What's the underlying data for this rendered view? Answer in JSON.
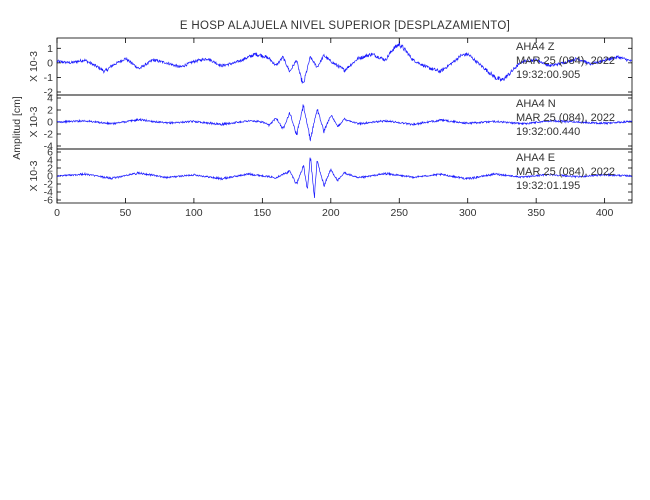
{
  "chart_data": {
    "type": "line",
    "title": "E HOSP ALAJUELA NIVEL SUPERIOR [DESPLAZAMIENTO]",
    "ylabel": "Amplitud [cm]",
    "x_ticks": [
      "0",
      "50",
      "100",
      "150",
      "200",
      "250",
      "300",
      "350",
      "400"
    ],
    "xlim": [
      0,
      420
    ],
    "line_color": "#1a1aff",
    "panels": [
      {
        "name": "Z",
        "scale_label": "X 10-3",
        "ylim": [
          -2,
          1.5
        ],
        "y_ticks": [
          "1",
          "0",
          "-1",
          "-2"
        ],
        "annotation": [
          "AHA4 Z",
          "MAR 25 (084), 2022",
          "19:32:00.905"
        ],
        "noise_amp": 0.22,
        "series": {
          "x": [
            0,
            10,
            20,
            30,
            35,
            40,
            50,
            60,
            70,
            80,
            90,
            100,
            110,
            120,
            130,
            140,
            145,
            150,
            155,
            160,
            165,
            170,
            175,
            178,
            180,
            182,
            185,
            190,
            195,
            200,
            210,
            220,
            230,
            240,
            245,
            250,
            255,
            260,
            270,
            280,
            290,
            295,
            300,
            305,
            310,
            315,
            320,
            325,
            330,
            335,
            340,
            350,
            360,
            370,
            380,
            390,
            400,
            410,
            420
          ],
          "y": [
            0.1,
            0.0,
            0.2,
            -0.3,
            -0.6,
            -0.2,
            0.3,
            -0.4,
            0.2,
            0.0,
            -0.3,
            0.1,
            0.3,
            -0.2,
            0.0,
            0.4,
            0.6,
            0.5,
            0.3,
            -0.2,
            0.4,
            -0.6,
            0.2,
            -1.0,
            -1.5,
            -0.7,
            0.4,
            -0.3,
            0.5,
            0.1,
            -0.5,
            0.3,
            0.6,
            0.2,
            0.9,
            1.3,
            0.8,
            0.2,
            -0.3,
            -0.6,
            0.1,
            0.5,
            0.6,
            0.2,
            -0.2,
            -0.6,
            -1.0,
            -1.2,
            -0.8,
            -0.3,
            0.1,
            0.2,
            -0.2,
            0.0,
            0.3,
            -0.1,
            0.2,
            0.4,
            0.1
          ]
        }
      },
      {
        "name": "N",
        "scale_label": "X 10-3",
        "ylim": [
          -4,
          4
        ],
        "y_ticks": [
          "4",
          "2",
          "0",
          "-2",
          "-4"
        ],
        "annotation": [
          "AHA4 N",
          "MAR 25 (084), 2022",
          "19:32:00.440"
        ],
        "noise_amp": 0.35,
        "series": {
          "x": [
            0,
            20,
            40,
            60,
            80,
            100,
            120,
            140,
            150,
            155,
            160,
            165,
            170,
            175,
            180,
            185,
            190,
            195,
            200,
            205,
            210,
            220,
            240,
            260,
            280,
            300,
            320,
            340,
            360,
            380,
            400,
            420
          ],
          "y": [
            0.0,
            0.2,
            -0.3,
            0.4,
            -0.2,
            0.1,
            -0.4,
            0.2,
            0.0,
            -0.6,
            0.8,
            -1.2,
            1.6,
            -2.2,
            2.8,
            -3.0,
            2.2,
            -1.6,
            1.2,
            -0.8,
            0.5,
            -0.3,
            0.2,
            -0.4,
            0.3,
            -0.2,
            0.1,
            -0.3,
            0.2,
            0.0,
            -0.2,
            0.1
          ]
        }
      },
      {
        "name": "E",
        "scale_label": "X 10-3",
        "ylim": [
          -6,
          6
        ],
        "y_ticks": [
          "6",
          "4",
          "2",
          "0",
          "-2",
          "-4",
          "-6"
        ],
        "annotation": [
          "AHA4 E",
          "MAR 25 (084), 2022",
          "19:32:01.195"
        ],
        "noise_amp": 0.45,
        "series": {
          "x": [
            0,
            20,
            40,
            60,
            80,
            100,
            120,
            140,
            160,
            170,
            175,
            180,
            183,
            185,
            188,
            190,
            195,
            200,
            205,
            210,
            220,
            240,
            260,
            280,
            300,
            320,
            340,
            360,
            380,
            400,
            420
          ],
          "y": [
            0.0,
            0.5,
            -0.6,
            0.8,
            -0.4,
            0.3,
            -0.7,
            0.5,
            -0.4,
            1.2,
            -2.0,
            2.6,
            -3.5,
            5.0,
            -5.2,
            3.8,
            -2.4,
            1.6,
            -1.2,
            0.8,
            -0.5,
            0.6,
            -0.3,
            0.4,
            -0.7,
            0.5,
            -0.3,
            0.4,
            -0.2,
            0.3,
            0.0
          ]
        }
      }
    ]
  }
}
